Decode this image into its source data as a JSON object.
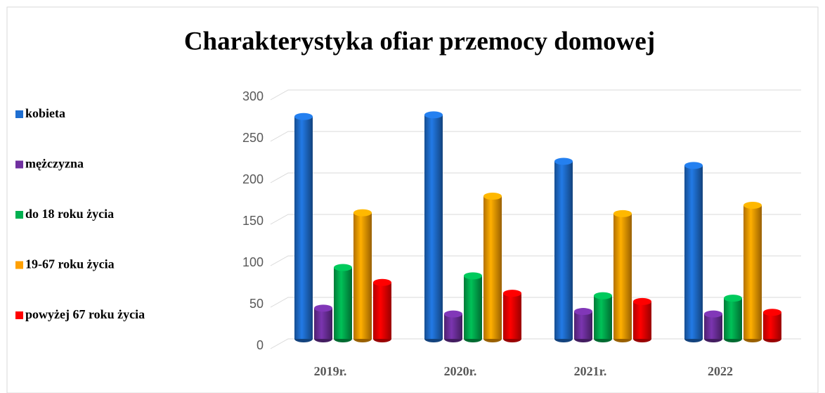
{
  "chart_data": {
    "type": "bar3d",
    "title": "Charakterystyka ofiar przemocy domowej",
    "categories": [
      "2019r.",
      "2020r.",
      "2021r.",
      "2022"
    ],
    "series": [
      {
        "name": "kobieta",
        "color": "#1f6fd1",
        "values": [
          268,
          270,
          214,
          209
        ]
      },
      {
        "name": "mężczyzna",
        "color": "#7030a0",
        "values": [
          37,
          30,
          33,
          30
        ]
      },
      {
        "name": "do 18 roku życia",
        "color": "#00b050",
        "values": [
          86,
          76,
          52,
          49
        ]
      },
      {
        "name": "19-67 roku życia",
        "color": "#ffa000",
        "values": [
          152,
          172,
          151,
          161
        ]
      },
      {
        "name": "powyżej 67 roku życia",
        "color": "#ff0000",
        "values": [
          68,
          55,
          45,
          32
        ]
      }
    ],
    "ylim": [
      0,
      300
    ],
    "yticks": [
      0,
      50,
      100,
      150,
      200,
      250,
      300
    ],
    "grid": true,
    "legend": "left"
  }
}
